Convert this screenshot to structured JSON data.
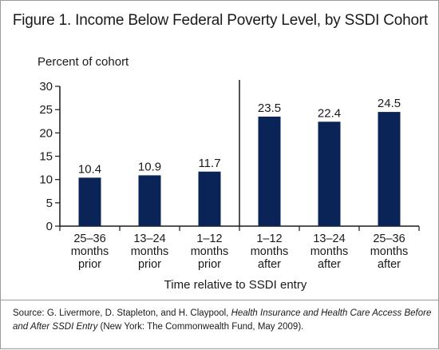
{
  "colors": {
    "bar": "#0a2458",
    "axis": "#1a1a1a"
  },
  "chart_data": {
    "type": "bar",
    "title": "Figure 1. Income Below Federal Poverty Level, by SSDI Cohort",
    "ylabel": "Percent of cohort",
    "xlabel": "Time relative to SSDI entry",
    "ylim": [
      0,
      30
    ],
    "yticks": [
      0,
      5,
      10,
      15,
      20,
      25,
      30
    ],
    "grid": false,
    "categories": [
      [
        "25–36",
        "months",
        "prior"
      ],
      [
        "13–24",
        "months",
        "prior"
      ],
      [
        "1–12",
        "months",
        "prior"
      ],
      [
        "1–12",
        "months",
        "after"
      ],
      [
        "13–24",
        "months",
        "after"
      ],
      [
        "25–36",
        "months",
        "after"
      ]
    ],
    "values": [
      10.4,
      10.9,
      11.7,
      23.5,
      22.4,
      24.5
    ],
    "value_labels": [
      "10.4",
      "10.9",
      "11.7",
      "23.5",
      "22.4",
      "24.5"
    ]
  },
  "source": {
    "prefix": "Source: G. Livermore, D. Stapleton, and H. Claypool, ",
    "italic": "Health Insurance and Health Care Access Before and After SSDI Entry",
    "suffix": " (New York: The Commonwealth Fund, May 2009)."
  }
}
